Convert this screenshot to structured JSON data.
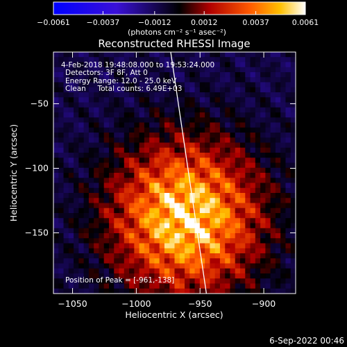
{
  "chart_data": {
    "type": "heatmap",
    "title": "Reconstructed RHESSI Image",
    "xlabel": "Heliocentric X (arcsec)",
    "ylabel": "Heliocentric Y (arcsec)",
    "xlim": [
      -1065,
      -875
    ],
    "ylim": [
      -197,
      -10
    ],
    "xticks": [
      -1050,
      -1000,
      -950,
      -900
    ],
    "xtick_labels": [
      "−1050",
      "−1000",
      "−950",
      "−900"
    ],
    "yticks": [
      -50,
      -100,
      -150
    ],
    "ytick_labels": [
      "−50",
      "−100",
      "−150"
    ],
    "colorbar": {
      "range": [
        -0.0061,
        0.0061
      ],
      "ticks": [
        -0.0061,
        -0.0037,
        -0.0012,
        0.0012,
        0.0037,
        0.0061
      ],
      "tick_labels": [
        "−0.0061",
        "−0.0037",
        "−0.0012",
        "0.0012",
        "0.0037",
        "0.0061"
      ],
      "unit_label": "(photons cm⁻² s⁻¹ asec⁻²)"
    },
    "annotations": [
      "4-Feb-2018 19:48:08.000 to 19:53:24.000",
      "Detectors: 3F 8F, Att 0",
      "Energy Range: 12.0 - 25.0 keV",
      "Clean     Total counts: 6.49E+03"
    ],
    "peak_label": "Position of Peak = [-961,-138]",
    "peak": [
      -961,
      -138
    ],
    "limb": [
      [
        -973,
        -10
      ],
      [
        -945,
        -197
      ]
    ]
  },
  "footer": {
    "date": "6-Sep-2022 00:46"
  },
  "colors": {
    "background": "#000000",
    "foreground": "#ffffff"
  }
}
